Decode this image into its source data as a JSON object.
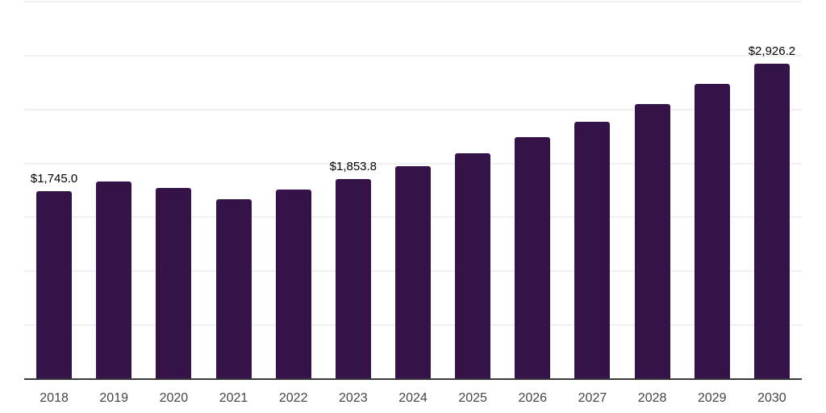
{
  "chart_data": {
    "type": "bar",
    "title": "",
    "xlabel": "",
    "ylabel": "",
    "legend": "none",
    "grid": true,
    "grid_step": 500,
    "ylim": [
      0,
      3500
    ],
    "categories": [
      "2018",
      "2019",
      "2020",
      "2021",
      "2022",
      "2023",
      "2024",
      "2025",
      "2026",
      "2027",
      "2028",
      "2029",
      "2030"
    ],
    "values": [
      1745.0,
      1835,
      1773,
      1665,
      1755,
      1853.8,
      1971,
      2092,
      2240,
      2389,
      2552,
      2739,
      2926.2
    ],
    "data_labels": [
      {
        "index": 0,
        "text": "$1,745.0"
      },
      {
        "index": 5,
        "text": "$1,853.8"
      },
      {
        "index": 12,
        "text": "$2,926.2"
      }
    ],
    "colors": {
      "bar": "#351349",
      "gridline": "#f0f0f0",
      "axis_line": "#3a3a3a",
      "tick_label": "#444444",
      "data_label": "#000000",
      "background": "#ffffff"
    }
  }
}
